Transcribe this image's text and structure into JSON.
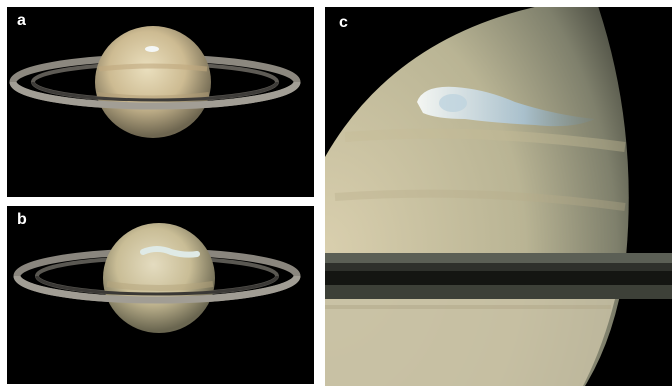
{
  "figure": {
    "panels": [
      {
        "id": "a",
        "label": "a"
      },
      {
        "id": "b",
        "label": "b"
      },
      {
        "id": "c",
        "label": "c"
      }
    ]
  },
  "colors": {
    "background": "#ffffff",
    "panel_bg": "#000000",
    "label_text": "#ffffff",
    "saturn_body": "#d8c8a0",
    "ring": "#9a958c",
    "storm": "#e6eef0"
  }
}
